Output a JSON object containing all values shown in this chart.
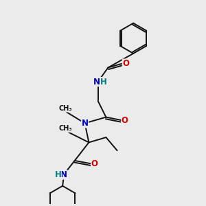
{
  "bg_color": "#ebebeb",
  "atom_color_N": "#0000cc",
  "atom_color_O": "#cc0000",
  "atom_color_H": "#008080",
  "line_color": "#111111",
  "line_width": 1.4,
  "font_size": 8.5,
  "fig_width": 3.0,
  "fig_height": 3.0,
  "dpi": 100,
  "xlim": [
    0,
    10
  ],
  "ylim": [
    0,
    10
  ]
}
